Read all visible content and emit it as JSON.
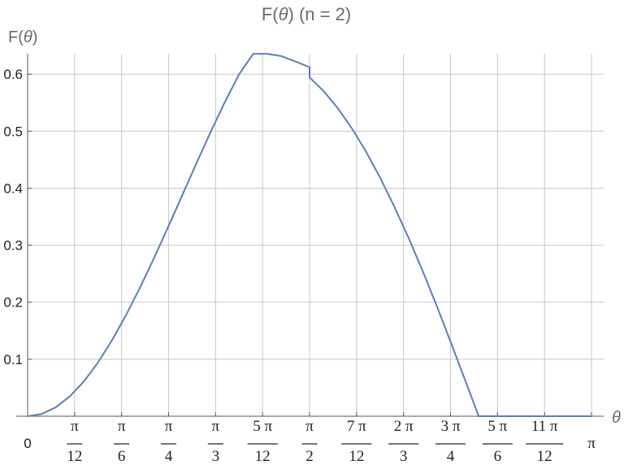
{
  "chart_data": {
    "type": "line",
    "title": "F(θ) (n = 2)",
    "title_parts": {
      "prefix": "F(",
      "var": "θ",
      "suffix": ") (n = 2)"
    },
    "xlabel": "θ",
    "ylabel": "F(θ)",
    "ylabel_parts": {
      "prefix": "F(",
      "var": "θ",
      "suffix": ")"
    },
    "xlim": [
      0,
      3.14159
    ],
    "ylim": [
      0,
      0.636
    ],
    "grid": true,
    "yticks": [
      {
        "value": 0.1,
        "label": "0.1"
      },
      {
        "value": 0.2,
        "label": "0.2"
      },
      {
        "value": 0.3,
        "label": "0.3"
      },
      {
        "value": 0.4,
        "label": "0.4"
      },
      {
        "value": 0.5,
        "label": "0.5"
      },
      {
        "value": 0.6,
        "label": "0.6"
      }
    ],
    "xticks": [
      {
        "value": 0,
        "label": "0"
      },
      {
        "value": 0.261799,
        "num": "π",
        "den": "12"
      },
      {
        "value": 0.523599,
        "num": "π",
        "den": "6"
      },
      {
        "value": 0.785398,
        "num": "π",
        "den": "4"
      },
      {
        "value": 1.047198,
        "num": "π",
        "den": "3"
      },
      {
        "value": 1.308997,
        "num": "5 π",
        "den": "12"
      },
      {
        "value": 1.570796,
        "num": "π",
        "den": "2"
      },
      {
        "value": 1.832596,
        "num": "7 π",
        "den": "12"
      },
      {
        "value": 2.094395,
        "num": "2 π",
        "den": "3"
      },
      {
        "value": 2.356194,
        "num": "3 π",
        "den": "4"
      },
      {
        "value": 2.617994,
        "num": "5 π",
        "den": "6"
      },
      {
        "value": 2.879793,
        "num": "11 π",
        "den": "12"
      },
      {
        "value": 3.141593,
        "label": "π"
      }
    ],
    "series": [
      {
        "color": "#5b7fb8",
        "x": [
          0,
          0.0785,
          0.1571,
          0.2356,
          0.3142,
          0.3927,
          0.4712,
          0.5498,
          0.6283,
          0.7069,
          0.7854,
          0.8639,
          0.9425,
          1.021,
          1.0996,
          1.1781,
          1.2566,
          1.3352,
          1.4137,
          1.4923,
          1.5708,
          1.5708,
          1.6493,
          1.7279,
          1.8064,
          1.885,
          1.9635,
          2.042,
          2.1206,
          2.1991,
          2.2777,
          2.3562,
          2.4347,
          2.5133,
          2.5918,
          2.6704,
          2.7489,
          2.8274,
          2.906,
          2.9845,
          3.0631,
          3.1416
        ],
        "y": [
          0,
          0.0039,
          0.0157,
          0.035,
          0.0614,
          0.0946,
          0.1338,
          0.1782,
          0.227,
          0.2792,
          0.3338,
          0.3894,
          0.4451,
          0.4995,
          0.5515,
          0.5998,
          0.6356,
          0.6356,
          0.6317,
          0.6222,
          0.6123,
          0.5943,
          0.5703,
          0.5404,
          0.505,
          0.4643,
          0.4186,
          0.3684,
          0.3142,
          0.2562,
          0.1949,
          0.1309,
          0.0656,
          0.0,
          0.0,
          0.0,
          0.0,
          0.0,
          0.0,
          0.0,
          0.0,
          0
        ]
      }
    ]
  }
}
